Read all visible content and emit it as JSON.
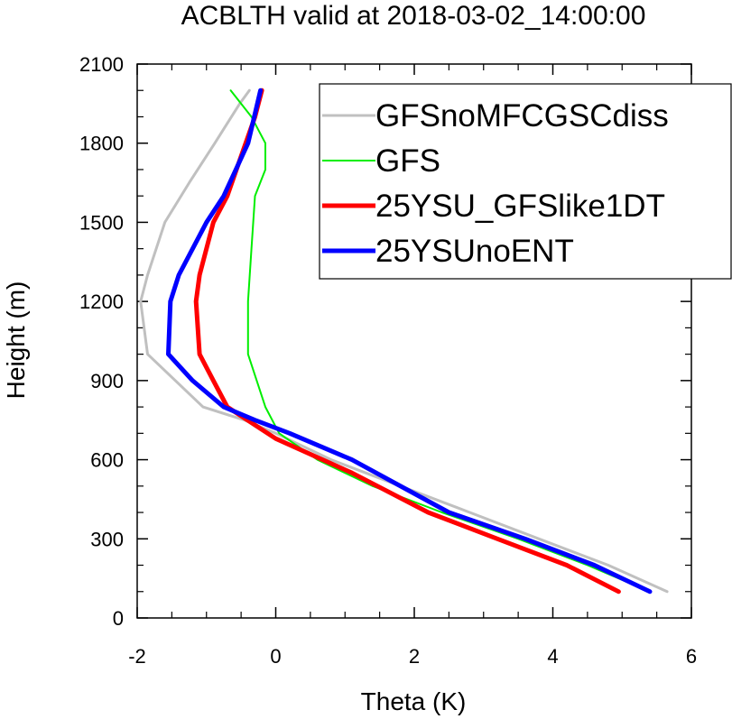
{
  "chart_data": {
    "type": "line",
    "title": "ACBLTH valid at 2018-03-02_14:00:00",
    "xlabel": "Theta (K)",
    "ylabel": "Height (m)",
    "xlim": [
      -2,
      6
    ],
    "ylim": [
      0,
      2100
    ],
    "xticks": [
      -2,
      0,
      2,
      4,
      6
    ],
    "yticks": [
      0,
      300,
      600,
      900,
      1200,
      1500,
      1800,
      2100
    ],
    "legend": "top-right",
    "grid": false,
    "series": [
      {
        "name": "GFSnoMFCGSCdiss",
        "color": "#c0c0c0",
        "width": 3,
        "x": [
          5.65,
          4.8,
          3.8,
          2.8,
          1.8,
          0.8,
          0.0,
          -0.45,
          -1.05,
          -1.85,
          -1.95,
          -1.85,
          -1.6,
          -1.25,
          -0.88,
          -0.52,
          -0.38
        ],
        "y": [
          100,
          200,
          300,
          400,
          500,
          600,
          700,
          750,
          800,
          1000,
          1200,
          1300,
          1500,
          1650,
          1800,
          1950,
          2000
        ]
      },
      {
        "name": "GFS",
        "color": "#00ee00",
        "width": 2,
        "x": [
          5.4,
          4.5,
          3.5,
          2.4,
          1.4,
          0.6,
          0.05,
          -0.15,
          -0.4,
          -0.4,
          -0.35,
          -0.3,
          -0.15,
          -0.15,
          -0.35,
          -0.65
        ],
        "y": [
          100,
          200,
          300,
          400,
          500,
          600,
          700,
          800,
          1000,
          1200,
          1400,
          1600,
          1700,
          1800,
          1900,
          2000
        ]
      },
      {
        "name": "25YSU_GFSlike1DT",
        "color": "#ff0000",
        "width": 5,
        "x": [
          4.95,
          4.2,
          3.2,
          2.2,
          1.1,
          0.0,
          -0.7,
          -0.9,
          -1.1,
          -1.15,
          -1.1,
          -0.9,
          -0.7,
          -0.5,
          -0.3,
          -0.2
        ],
        "y": [
          100,
          200,
          300,
          400,
          550,
          680,
          800,
          900,
          1000,
          1200,
          1300,
          1500,
          1600,
          1750,
          1900,
          2000
        ]
      },
      {
        "name": "25YSUnoENT",
        "color": "#0000ff",
        "width": 5,
        "x": [
          5.4,
          4.6,
          3.6,
          2.5,
          1.1,
          0.2,
          -0.3,
          -0.75,
          -1.2,
          -1.55,
          -1.52,
          -1.4,
          -1.0,
          -0.75,
          -0.4,
          -0.22
        ],
        "y": [
          100,
          200,
          300,
          400,
          600,
          700,
          750,
          800,
          900,
          1000,
          1200,
          1300,
          1500,
          1600,
          1800,
          2000
        ]
      }
    ]
  }
}
